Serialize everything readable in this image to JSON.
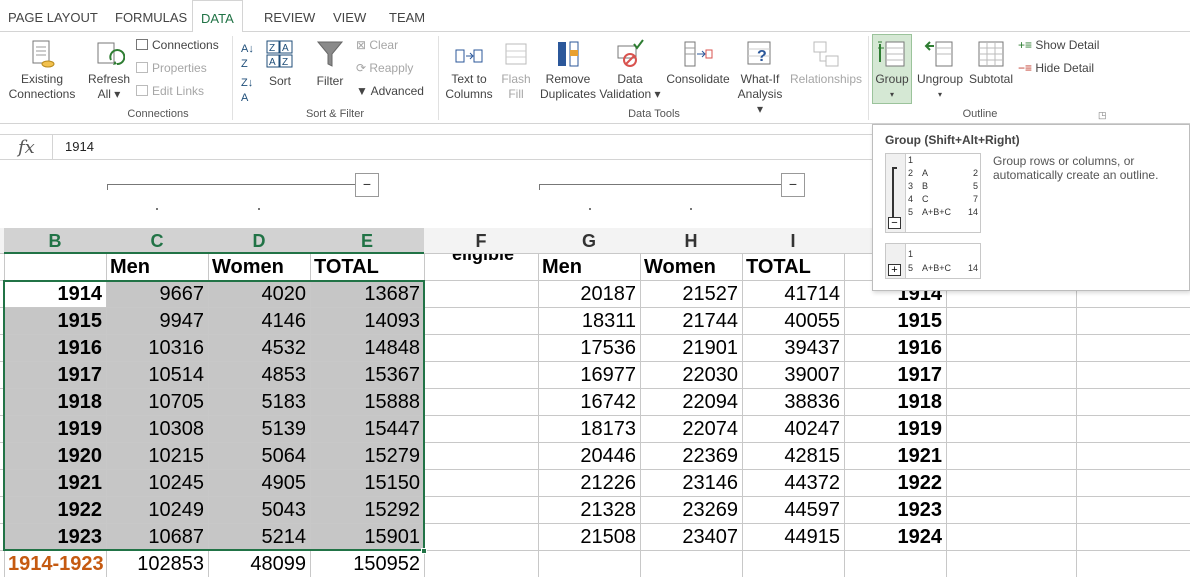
{
  "tabs": [
    "PAGE LAYOUT",
    "FORMULAS",
    "DATA",
    "REVIEW",
    "VIEW",
    "TEAM"
  ],
  "active_tab": "DATA",
  "ribbon": {
    "existing_connections": [
      "Existing",
      "Connections"
    ],
    "refresh_all": [
      "Refresh",
      "All ▾"
    ],
    "connections": "Connections",
    "properties": "Properties",
    "edit_links": "Edit Links",
    "sort": "Sort",
    "filter": "Filter",
    "clear": "Clear",
    "reapply": "Reapply",
    "advanced": "Advanced",
    "text_to_columns": [
      "Text to",
      "Columns"
    ],
    "flash_fill": [
      "Flash",
      "Fill"
    ],
    "remove_duplicates": [
      "Remove",
      "Duplicates"
    ],
    "data_validation": [
      "Data",
      "Validation ▾"
    ],
    "consolidate": "Consolidate",
    "what_if": [
      "What-If",
      "Analysis ▾"
    ],
    "relationships": "Relationships",
    "group": "Group",
    "ungroup": "Ungroup",
    "subtotal": "Subtotal",
    "show_detail": "Show Detail",
    "hide_detail": "Hide Detail",
    "group_labels": {
      "connections": "Connections",
      "sort_filter": "Sort & Filter",
      "data_tools": "Data Tools",
      "outline": "Outline"
    }
  },
  "formula_bar": {
    "fx": "fx",
    "value": "1914"
  },
  "outline_buttons": [
    "−",
    "−"
  ],
  "columns": [
    {
      "letter": "B",
      "selected": true
    },
    {
      "letter": "C",
      "selected": true
    },
    {
      "letter": "D",
      "selected": true
    },
    {
      "letter": "E",
      "selected": true
    },
    {
      "letter": "F",
      "selected": false
    },
    {
      "letter": "G",
      "selected": false
    },
    {
      "letter": "H",
      "selected": false
    },
    {
      "letter": "I",
      "selected": false
    }
  ],
  "header_row": {
    "C": "Men",
    "D": "Women",
    "E": "TOTAL",
    "F": "eligible",
    "G": "Men",
    "H": "Women",
    "I": "TOTAL"
  },
  "rows": [
    {
      "year": "1914",
      "men": "9667",
      "women": "4020",
      "total": "13687",
      "men2": "20187",
      "women2": "21527",
      "total2": "41714",
      "year2": "1914"
    },
    {
      "year": "1915",
      "men": "9947",
      "women": "4146",
      "total": "14093",
      "men2": "18311",
      "women2": "21744",
      "total2": "40055",
      "year2": "1915"
    },
    {
      "year": "1916",
      "men": "10316",
      "women": "4532",
      "total": "14848",
      "men2": "17536",
      "women2": "21901",
      "total2": "39437",
      "year2": "1916"
    },
    {
      "year": "1917",
      "men": "10514",
      "women": "4853",
      "total": "15367",
      "men2": "16977",
      "women2": "22030",
      "total2": "39007",
      "year2": "1917"
    },
    {
      "year": "1918",
      "men": "10705",
      "women": "5183",
      "total": "15888",
      "men2": "16742",
      "women2": "22094",
      "total2": "38836",
      "year2": "1918"
    },
    {
      "year": "1919",
      "men": "10308",
      "women": "5139",
      "total": "15447",
      "men2": "18173",
      "women2": "22074",
      "total2": "40247",
      "year2": "1919"
    },
    {
      "year": "1920",
      "men": "10215",
      "women": "5064",
      "total": "15279",
      "men2": "20446",
      "women2": "22369",
      "total2": "42815",
      "year2": "1921"
    },
    {
      "year": "1921",
      "men": "10245",
      "women": "4905",
      "total": "15150",
      "men2": "21226",
      "women2": "23146",
      "total2": "44372",
      "year2": "1922"
    },
    {
      "year": "1922",
      "men": "10249",
      "women": "5043",
      "total": "15292",
      "men2": "21328",
      "women2": "23269",
      "total2": "44597",
      "year2": "1923"
    },
    {
      "year": "1923",
      "men": "10687",
      "women": "5214",
      "total": "15901",
      "men2": "21508",
      "women2": "23407",
      "total2": "44915",
      "year2": "1924"
    }
  ],
  "total_row": {
    "label": "1914-1923",
    "men": "102853",
    "women": "48099",
    "total": "150952"
  },
  "tooltip": {
    "title": "Group (Shift+Alt+Right)",
    "description": "Group rows or columns, or automatically create an outline.",
    "sample_rows": [
      {
        "n": "1",
        "a": "",
        "b": ""
      },
      {
        "n": "2",
        "a": "A",
        "b": "2"
      },
      {
        "n": "3",
        "a": "B",
        "b": "5"
      },
      {
        "n": "4",
        "a": "C",
        "b": "7"
      },
      {
        "n": "5",
        "a": "A+B+C",
        "b": "14"
      }
    ],
    "collapsed_rows": [
      {
        "n": "1",
        "a": "",
        "b": ""
      },
      {
        "n": "5",
        "a": "A+B+C",
        "b": "14"
      }
    ],
    "minus": "−",
    "plus": "+"
  },
  "colors": {
    "accent": "#217346",
    "label_orange": "#c55a11",
    "selection_fill": "#c6c6c6"
  }
}
